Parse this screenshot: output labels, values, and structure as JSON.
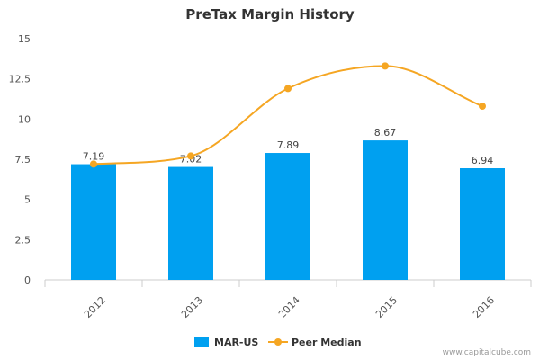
{
  "chart_data": {
    "type": "bar",
    "title": "PreTax Margin History",
    "categories": [
      "2012",
      "2013",
      "2014",
      "2015",
      "2016"
    ],
    "ylim": [
      0,
      15
    ],
    "yticks": [
      "0",
      "2.5",
      "5",
      "7.5",
      "10",
      "12.5",
      "15"
    ],
    "series": [
      {
        "name": "MAR-US",
        "type": "bar",
        "color": "#00a0f0",
        "values": [
          7.19,
          7.02,
          7.89,
          8.67,
          6.94
        ],
        "labels": [
          "7.19",
          "7.02",
          "7.89",
          "8.67",
          "6.94"
        ]
      },
      {
        "name": "Peer Median",
        "type": "line",
        "color": "#f5a623",
        "values": [
          7.2,
          7.7,
          11.9,
          13.3,
          10.8
        ]
      }
    ],
    "grid": false,
    "legend": "bottom-center"
  },
  "credit": "www.capitalcube.com"
}
